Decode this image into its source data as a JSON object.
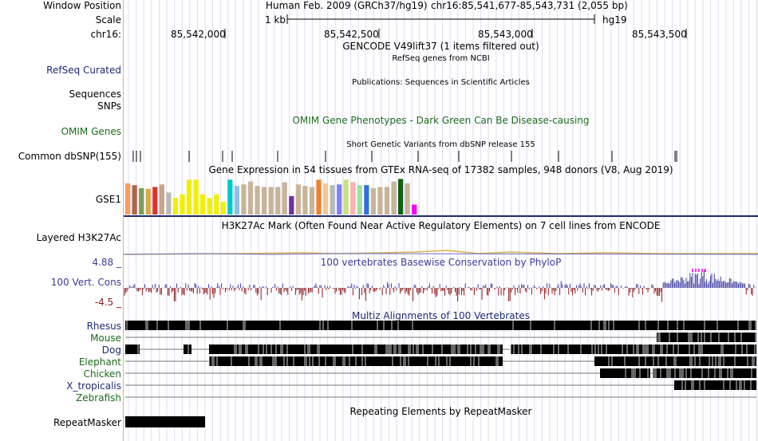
{
  "header": {
    "window_position_label": "Window Position",
    "scale_label": "Scale",
    "chrom_label": "chr16:",
    "assembly": "Human Feb. 2009 (GRCh37/hg19)",
    "position": "chr16:85,541,677-85,543,731 (2,055 bp)",
    "scale_value": "1 kb",
    "db": "hg19",
    "ticks": [
      "85,542,000",
      "85,542,500",
      "85,543,000",
      "85,543,500"
    ]
  },
  "tracks": {
    "gencode_title": "GENCODE V49lift37 (1 items filtered out)",
    "refseq_title": "RefSeq genes from NCBI",
    "refseq_label": "RefSeq Curated",
    "pubs_title": "Publications: Sequences in Scientific Articles",
    "sequences_label": "Sequences",
    "snps_label": "SNPs",
    "omim_title": "OMIM Gene Phenotypes - Dark Green Can Be Disease-causing",
    "omim_label": "OMIM Genes",
    "dbsnp_title": "Short Genetic Variants from dbSNP release 155",
    "dbsnp_label": "Common dbSNP(155)",
    "gtex_title": "Gene Expression in 54 tissues from GTEx RNA-seq of 17382 samples, 948 donors (V8, Aug 2019)",
    "gtex_label": "GSE1",
    "h3k27ac_title": "H3K27Ac Mark (Often Found Near Active Regulatory Elements) on 7 cell lines from ENCODE",
    "h3k27ac_label": "Layered H3K27Ac",
    "cons_title": "100 vertebrates Basewise Conservation by PhyloP",
    "cons_label": "100 Vert. Cons",
    "cons_max": "4.88 _",
    "cons_min": "-4.5 _",
    "multiz_title": "Multiz Alignments of 100 Vertebrates",
    "species": [
      "Rhesus",
      "Mouse",
      "Dog",
      "Elephant",
      "Chicken",
      "X_tropicalis",
      "Zebrafish"
    ],
    "repeat_title": "Repeating Elements by RepeatMasker",
    "repeat_label": "RepeatMasker"
  },
  "colors": {
    "navy": "#1d2b73",
    "green": "#1c6a1c",
    "phylop_pos": "#3c3c9c",
    "phylop_neg": "#8b1a1a",
    "grid": "#dcdcf5",
    "gtex_line": "#1d2b73"
  },
  "gtex_bar_colors": [
    "#ff9a5c",
    "#b3634a",
    "#7c9e5c",
    "#d9a94a",
    "#e03030",
    "#c9a48a",
    "#b9b9b9",
    "#f0f000",
    "#f0f000",
    "#f0f000",
    "#f0f000",
    "#f0f000",
    "#f0f000",
    "#f0f000",
    "#f0f000",
    "#00c8c8",
    "#90c0e8",
    "#c8b49a",
    "#c8b49a",
    "#c8b49a",
    "#c8b49a",
    "#c8b49a",
    "#c8b49a",
    "#c8b49a",
    "#7030a0",
    "#c8b49a",
    "#c8b49a",
    "#c8b49a",
    "#f08030",
    "#f0c890",
    "#b9b9b9",
    "#8080ff",
    "#c8e080",
    "#ffb0b0",
    "#a0e0a0",
    "#3070e0",
    "#c8b49a",
    "#c8b49a",
    "#c8b49a",
    "#c8b49a",
    "#106010",
    "#c8b49a",
    "#ff00ff"
  ],
  "gtex_bar_levels": [
    0.85,
    0.8,
    0.72,
    0.7,
    0.75,
    0.82,
    0.6,
    0.45,
    0.55,
    0.95,
    0.95,
    0.55,
    0.45,
    0.55,
    0.35,
    0.95,
    0.78,
    0.82,
    0.9,
    0.78,
    0.75,
    0.75,
    0.75,
    0.88,
    0.5,
    0.82,
    0.78,
    0.75,
    0.95,
    0.85,
    0.8,
    0.82,
    0.95,
    0.88,
    0.8,
    0.8,
    0.72,
    0.75,
    0.75,
    0.9,
    0.97,
    0.85,
    0.27
  ]
}
